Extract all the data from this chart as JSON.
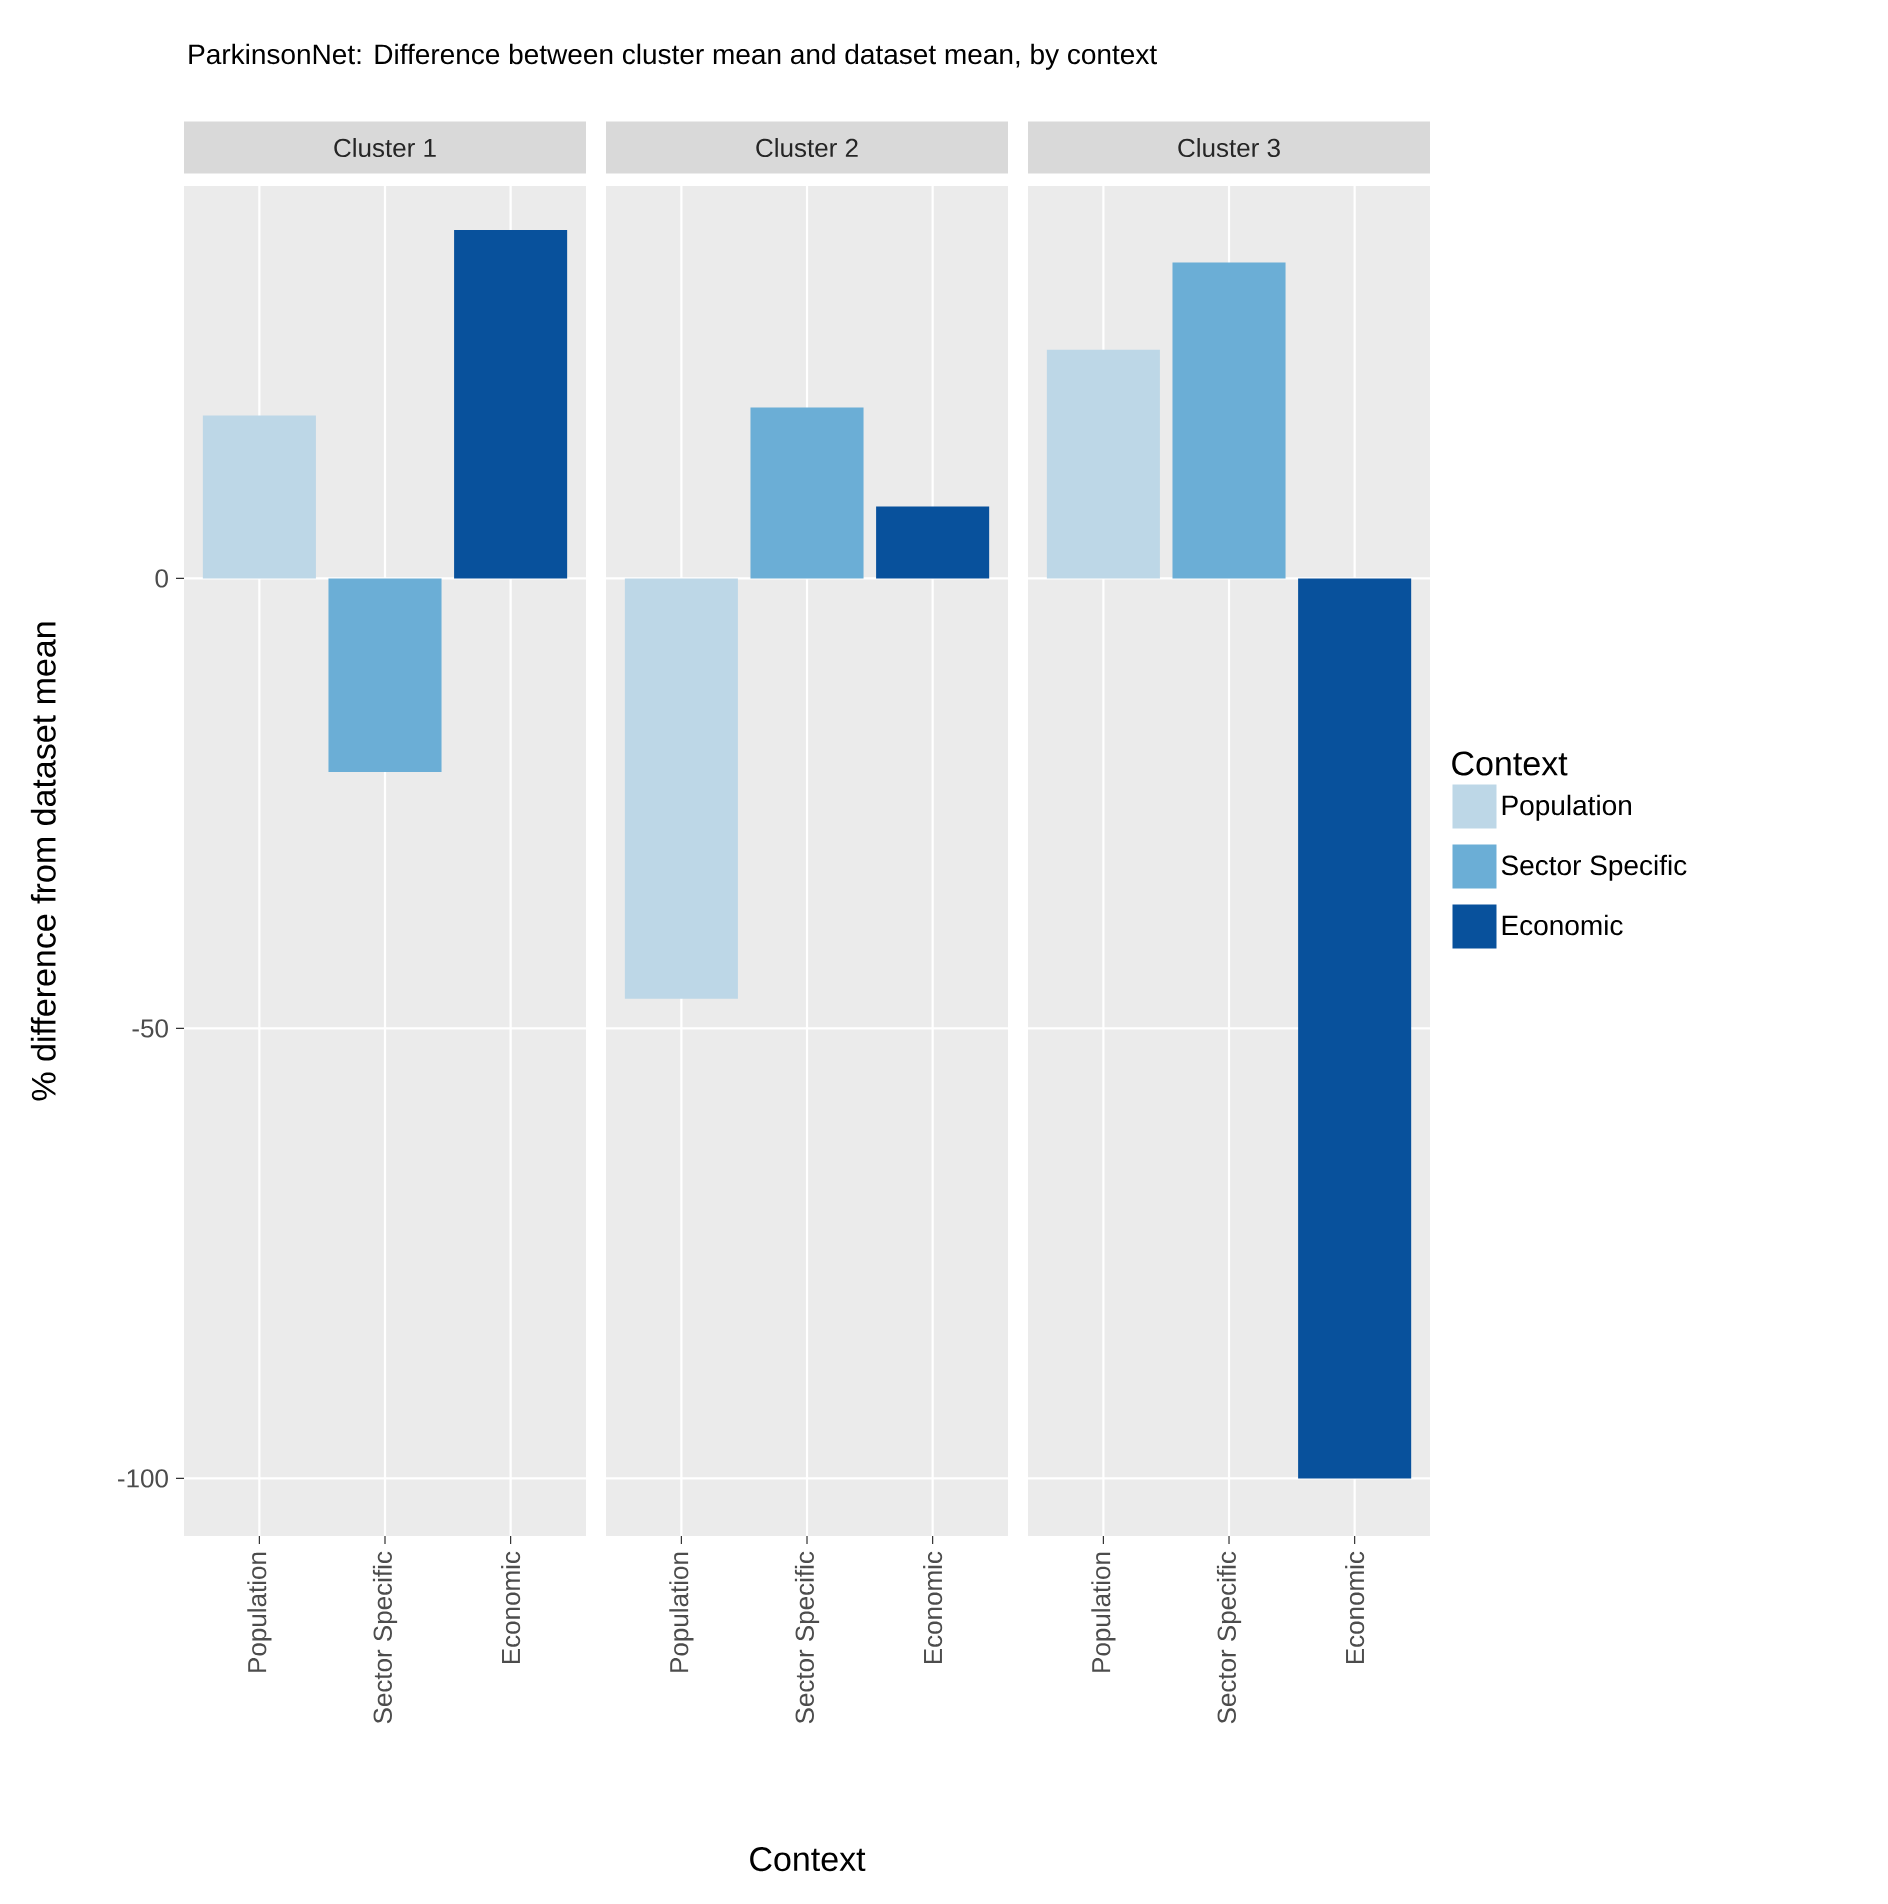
{
  "chart_data": [
    {
      "type": "bar",
      "title": "Cluster 1",
      "annotations": [
        "ParkinsonNet: Difference between cluster mean and dataset mean, by context"
      ],
      "ylabel": "% difference from dataset mean",
      "categories": [
        "Population",
        "Sector Specific",
        "Economic"
      ],
      "series": [
        {
          "color": "#bdd7e7",
          "values": [
            18.1,
            null,
            null
          ]
        },
        {
          "color": "#6baed6",
          "values": [
            null,
            -21.5,
            null
          ]
        },
        {
          "color": "#08519c",
          "values": [
            null,
            null,
            38.7
          ]
        }
      ],
      "ylim": [
        -106.4,
        43.6
      ],
      "yticks": [
        -100,
        -50,
        0
      ],
      "grid": true
    },
    {
      "type": "bar",
      "title": "Cluster 2",
      "xlabel": "Context",
      "categories": [
        "Population",
        "Sector Specific",
        "Economic"
      ],
      "series": [
        {
          "color": "#bdd7e7",
          "values": [
            -46.7,
            null,
            null
          ]
        },
        {
          "color": "#6baed6",
          "values": [
            null,
            19.0,
            null
          ]
        },
        {
          "color": "#08519c",
          "values": [
            null,
            null,
            8.0
          ]
        }
      ],
      "ylim": [
        -106.4,
        43.6
      ],
      "yticks": [
        -100,
        -50,
        0
      ],
      "grid": true,
      "tick_labels": "x"
    },
    {
      "type": "bar",
      "title": "Cluster 3",
      "legend_title": "Context",
      "legend": "right",
      "categories": [
        "Population",
        "Sector Specific",
        "Economic"
      ],
      "series": [
        {
          "name": "Population",
          "color": "#bdd7e7",
          "values": [
            25.4,
            null,
            null
          ]
        },
        {
          "name": "Sector Specific",
          "color": "#6baed6",
          "values": [
            null,
            35.1,
            null
          ]
        },
        {
          "name": "Economic",
          "color": "#08519c",
          "values": [
            null,
            null,
            -100
          ]
        }
      ],
      "ylim": [
        -106.4,
        43.6
      ],
      "yticks": [
        -100,
        -50,
        0
      ],
      "grid": true,
      "tick_labels": "x"
    }
  ]
}
